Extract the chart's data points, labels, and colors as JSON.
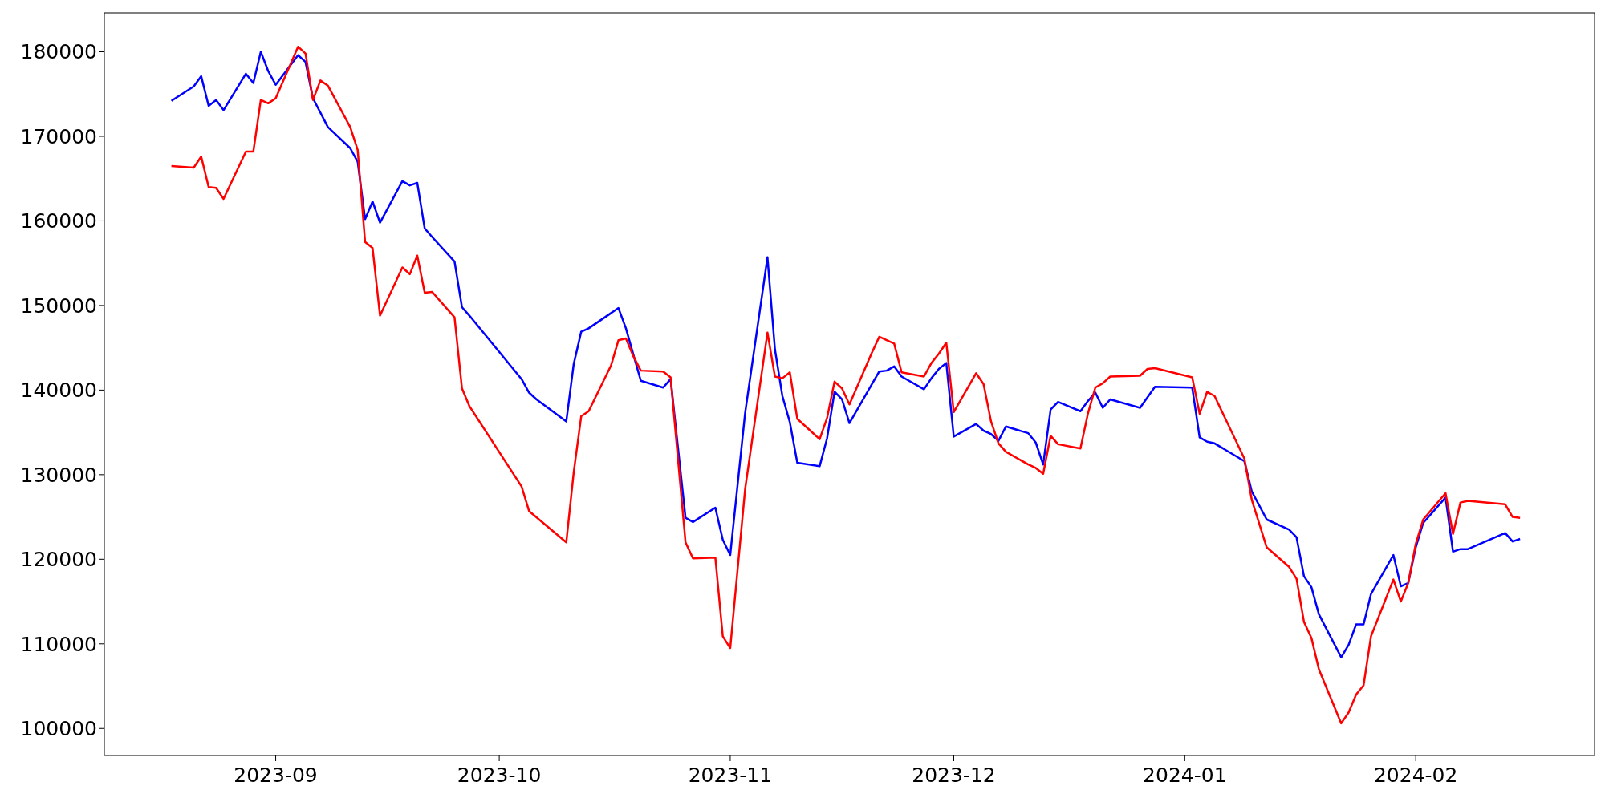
{
  "chart_data": {
    "type": "line",
    "xlim": [
      "2023-08-09",
      "2024-02-25"
    ],
    "xticks": [
      {
        "value": "2023-09-01",
        "label": "2023-09"
      },
      {
        "value": "2023-10-01",
        "label": "2023-10"
      },
      {
        "value": "2023-11-01",
        "label": "2023-11"
      },
      {
        "value": "2023-12-01",
        "label": "2023-12"
      },
      {
        "value": "2024-01-01",
        "label": "2024-01"
      },
      {
        "value": "2024-02-01",
        "label": "2024-02"
      }
    ],
    "ylim": [
      96800,
      184600
    ],
    "yticks": [
      100000,
      110000,
      120000,
      130000,
      140000,
      150000,
      160000,
      170000,
      180000
    ],
    "series": [
      {
        "color": "#0000ff",
        "x": [
          "2023-08-18",
          "2023-08-21",
          "2023-08-22",
          "2023-08-23",
          "2023-08-24",
          "2023-08-25",
          "2023-08-28",
          "2023-08-29",
          "2023-08-30",
          "2023-08-31",
          "2023-09-01",
          "2023-09-04",
          "2023-09-05",
          "2023-09-06",
          "2023-09-08",
          "2023-09-11",
          "2023-09-12",
          "2023-09-13",
          "2023-09-14",
          "2023-09-15",
          "2023-09-18",
          "2023-09-19",
          "2023-09-20",
          "2023-09-21",
          "2023-09-22",
          "2023-09-25",
          "2023-09-26",
          "2023-09-27",
          "2023-10-04",
          "2023-10-05",
          "2023-10-06",
          "2023-10-10",
          "2023-10-11",
          "2023-10-12",
          "2023-10-13",
          "2023-10-17",
          "2023-10-18",
          "2023-10-19",
          "2023-10-20",
          "2023-10-23",
          "2023-10-24",
          "2023-10-26",
          "2023-10-27",
          "2023-10-30",
          "2023-10-31",
          "2023-11-01",
          "2023-11-03",
          "2023-11-06",
          "2023-11-07",
          "2023-11-08",
          "2023-11-09",
          "2023-11-10",
          "2023-11-13",
          "2023-11-14",
          "2023-11-15",
          "2023-11-16",
          "2023-11-17",
          "2023-11-21",
          "2023-11-22",
          "2023-11-23",
          "2023-11-24",
          "2023-11-27",
          "2023-11-28",
          "2023-11-29",
          "2023-11-30",
          "2023-12-01",
          "2023-12-04",
          "2023-12-05",
          "2023-12-06",
          "2023-12-07",
          "2023-12-08",
          "2023-12-11",
          "2023-12-12",
          "2023-12-13",
          "2023-12-14",
          "2023-12-15",
          "2023-12-18",
          "2023-12-19",
          "2023-12-20",
          "2023-12-21",
          "2023-12-22",
          "2023-12-26",
          "2023-12-28",
          "2024-01-02",
          "2024-01-03",
          "2024-01-04",
          "2024-01-05",
          "2024-01-09",
          "2024-01-10",
          "2024-01-12",
          "2024-01-15",
          "2024-01-16",
          "2024-01-17",
          "2024-01-18",
          "2024-01-19",
          "2024-01-22",
          "2024-01-23",
          "2024-01-24",
          "2024-01-25",
          "2024-01-26",
          "2024-01-29",
          "2024-01-30",
          "2024-01-31",
          "2024-02-01",
          "2024-02-02",
          "2024-02-05",
          "2024-02-06",
          "2024-02-07",
          "2024-02-08",
          "2024-02-13",
          "2024-02-14",
          "2024-02-15"
        ],
        "values": [
          174200,
          175900,
          177100,
          173600,
          174300,
          173100,
          177400,
          176300,
          180000,
          177700,
          176100,
          179600,
          178800,
          174500,
          171100,
          168600,
          167000,
          160200,
          162300,
          159800,
          164700,
          164200,
          164500,
          159100,
          158100,
          155200,
          149800,
          148800,
          141300,
          139700,
          138900,
          136300,
          143100,
          146900,
          147300,
          149700,
          147300,
          144200,
          141100,
          140300,
          141300,
          124900,
          124400,
          126100,
          122300,
          120500,
          137300,
          155700,
          144800,
          139300,
          136200,
          131400,
          131000,
          134300,
          139800,
          138900,
          136100,
          142200,
          142300,
          142800,
          141600,
          140100,
          141400,
          142500,
          143200,
          134500,
          136000,
          135200,
          134800,
          134000,
          135700,
          134900,
          133800,
          131200,
          137700,
          138600,
          137500,
          138700,
          139700,
          137900,
          138900,
          137900,
          140400,
          140300,
          134400,
          133900,
          133700,
          131600,
          128000,
          124700,
          123500,
          122600,
          118000,
          116700,
          113500,
          108400,
          109900,
          112300,
          112300,
          115900,
          120500,
          116800,
          117200,
          121400,
          124300,
          127300,
          120900,
          121200,
          121200,
          123100,
          122100,
          122400
        ]
      },
      {
        "color": "#ff0000",
        "x": [
          "2023-08-18",
          "2023-08-21",
          "2023-08-22",
          "2023-08-23",
          "2023-08-24",
          "2023-08-25",
          "2023-08-28",
          "2023-08-29",
          "2023-08-30",
          "2023-08-31",
          "2023-09-01",
          "2023-09-04",
          "2023-09-05",
          "2023-09-06",
          "2023-09-07",
          "2023-09-08",
          "2023-09-11",
          "2023-09-12",
          "2023-09-13",
          "2023-09-14",
          "2023-09-15",
          "2023-09-18",
          "2023-09-19",
          "2023-09-20",
          "2023-09-21",
          "2023-09-22",
          "2023-09-25",
          "2023-09-26",
          "2023-09-27",
          "2023-10-04",
          "2023-10-05",
          "2023-10-10",
          "2023-10-11",
          "2023-10-12",
          "2023-10-13",
          "2023-10-16",
          "2023-10-17",
          "2023-10-18",
          "2023-10-19",
          "2023-10-20",
          "2023-10-23",
          "2023-10-24",
          "2023-10-26",
          "2023-10-27",
          "2023-10-30",
          "2023-10-31",
          "2023-11-01",
          "2023-11-03",
          "2023-11-06",
          "2023-11-07",
          "2023-11-08",
          "2023-11-09",
          "2023-11-10",
          "2023-11-13",
          "2023-11-14",
          "2023-11-15",
          "2023-11-16",
          "2023-11-17",
          "2023-11-20",
          "2023-11-21",
          "2023-11-22",
          "2023-11-23",
          "2023-11-24",
          "2023-11-27",
          "2023-11-28",
          "2023-11-29",
          "2023-11-30",
          "2023-12-01",
          "2023-12-04",
          "2023-12-05",
          "2023-12-06",
          "2023-12-07",
          "2023-12-08",
          "2023-12-11",
          "2023-12-12",
          "2023-12-13",
          "2023-12-14",
          "2023-12-15",
          "2023-12-18",
          "2023-12-19",
          "2023-12-20",
          "2023-12-21",
          "2023-12-22",
          "2023-12-26",
          "2023-12-27",
          "2023-12-28",
          "2024-01-02",
          "2024-01-03",
          "2024-01-04",
          "2024-01-05",
          "2024-01-09",
          "2024-01-10",
          "2024-01-12",
          "2024-01-15",
          "2024-01-16",
          "2024-01-17",
          "2024-01-18",
          "2024-01-19",
          "2024-01-22",
          "2024-01-23",
          "2024-01-24",
          "2024-01-25",
          "2024-01-26",
          "2024-01-29",
          "2024-01-30",
          "2024-01-31",
          "2024-02-01",
          "2024-02-02",
          "2024-02-05",
          "2024-02-06",
          "2024-02-07",
          "2024-02-08",
          "2024-02-13",
          "2024-02-14",
          "2024-02-15"
        ],
        "values": [
          166500,
          166300,
          167600,
          164000,
          163900,
          162600,
          168200,
          168200,
          174300,
          173900,
          174500,
          180600,
          179800,
          174300,
          176600,
          176000,
          171100,
          168400,
          157500,
          156800,
          148800,
          154500,
          153700,
          155900,
          151500,
          151600,
          148600,
          140200,
          138100,
          128600,
          125700,
          122000,
          130300,
          136900,
          137500,
          142900,
          145900,
          146100,
          144000,
          142300,
          142200,
          141500,
          122000,
          120100,
          120200,
          110900,
          109500,
          128300,
          146800,
          141600,
          141400,
          142100,
          136600,
          134200,
          136700,
          141000,
          140200,
          138300,
          144400,
          146300,
          145900,
          145500,
          142100,
          141600,
          143200,
          144300,
          145600,
          137400,
          142000,
          140700,
          136300,
          133700,
          132700,
          131200,
          130800,
          130100,
          134600,
          133600,
          133100,
          137200,
          140300,
          140800,
          141600,
          141700,
          142500,
          142600,
          141500,
          137200,
          139800,
          139300,
          131900,
          127000,
          121400,
          119100,
          117700,
          112600,
          110700,
          107000,
          100600,
          101900,
          104000,
          105100,
          110900,
          117600,
          115000,
          117200,
          121800,
          124700,
          127800,
          123000,
          126700,
          126900,
          126500,
          125000,
          124900
        ]
      }
    ]
  }
}
